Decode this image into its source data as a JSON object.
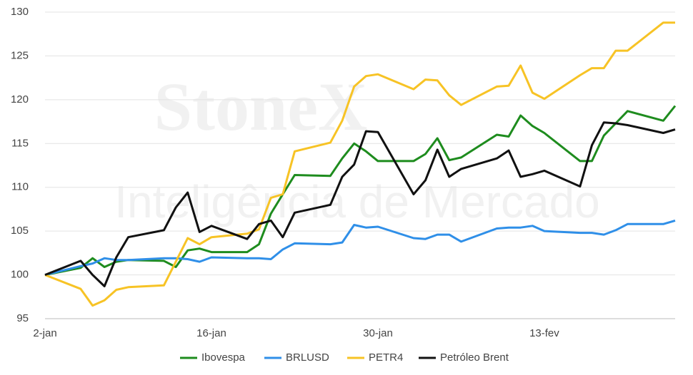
{
  "chart_data": {
    "type": "line",
    "watermark": [
      "StoneX",
      "Inteligência de Mercado"
    ],
    "x": [
      "2-jan",
      "5-jan",
      "6-jan",
      "7-jan",
      "8-jan",
      "9-jan",
      "12-jan",
      "13-jan",
      "14-jan",
      "15-jan",
      "16-jan",
      "19-jan",
      "20-jan",
      "21-jan",
      "22-jan",
      "23-jan",
      "26-jan",
      "27-jan",
      "28-jan",
      "29-jan",
      "30-jan",
      "2-fev",
      "3-fev",
      "4-fev",
      "5-fev",
      "6-fev",
      "9-fev",
      "10-fev",
      "11-fev",
      "12-fev",
      "13-fev",
      "16-fev",
      "17-fev",
      "18-fev",
      "19-fev",
      "20-fev",
      "23-fev",
      "24-fev"
    ],
    "xlim": [
      "2-jan",
      "24-fev"
    ],
    "xticks": [
      "2-jan",
      "16-jan",
      "30-jan",
      "13-fev"
    ],
    "ylim": [
      95,
      130
    ],
    "yticks": [
      95,
      100,
      105,
      110,
      115,
      120,
      125,
      130
    ],
    "grid": true,
    "legend": "bottom",
    "series": [
      {
        "name": "Ibovespa",
        "color": "#1e8c1e",
        "values": [
          100,
          100.8,
          101.9,
          100.9,
          101.5,
          101.7,
          101.6,
          100.9,
          102.8,
          103,
          102.6,
          102.6,
          103.5,
          107,
          109.2,
          111.4,
          111.3,
          113.3,
          115,
          114.1,
          113,
          113,
          113.8,
          115.6,
          113.1,
          113.4,
          116,
          115.8,
          118.2,
          117,
          116.2,
          113,
          113,
          115.9,
          117.3,
          118.7,
          117.6,
          119.3
        ]
      },
      {
        "name": "BRLUSD",
        "color": "#2f8fe8",
        "values": [
          100,
          101,
          101.3,
          101.9,
          101.7,
          101.7,
          101.9,
          101.9,
          101.8,
          101.5,
          102,
          101.9,
          101.9,
          101.8,
          102.9,
          103.6,
          103.5,
          103.7,
          105.7,
          105.4,
          105.5,
          104.2,
          104.1,
          104.6,
          104.6,
          103.8,
          105.3,
          105.4,
          105.4,
          105.6,
          105,
          104.8,
          104.8,
          104.6,
          105.1,
          105.8,
          105.8,
          106.2
        ]
      },
      {
        "name": "PETR4",
        "color": "#f7c325",
        "values": [
          100,
          98.4,
          96.5,
          97.1,
          98.3,
          98.6,
          98.8,
          101.5,
          104.2,
          103.5,
          104.3,
          104.7,
          105.2,
          108.8,
          109.2,
          114.1,
          115.1,
          117.6,
          121.5,
          122.7,
          122.9,
          121.2,
          122.3,
          122.2,
          120.5,
          119.4,
          121.5,
          121.6,
          123.9,
          120.8,
          120.1,
          122.8,
          123.6,
          123.6,
          125.6,
          125.6,
          128.8,
          128.8
        ]
      },
      {
        "name": "Petróleo Brent",
        "color": "#111111",
        "values": [
          100,
          101.6,
          100,
          98.7,
          102,
          104.3,
          105.1,
          107.7,
          109.4,
          104.9,
          105.6,
          104.1,
          105.8,
          106.2,
          104.3,
          107.1,
          108,
          111.2,
          112.6,
          116.4,
          116.3,
          109.2,
          110.8,
          114.3,
          111.2,
          112.1,
          113.3,
          114.2,
          111.2,
          111.5,
          111.9,
          110.1,
          114.8,
          117.4,
          117.3,
          117.1,
          116.2,
          116.6
        ]
      }
    ]
  }
}
